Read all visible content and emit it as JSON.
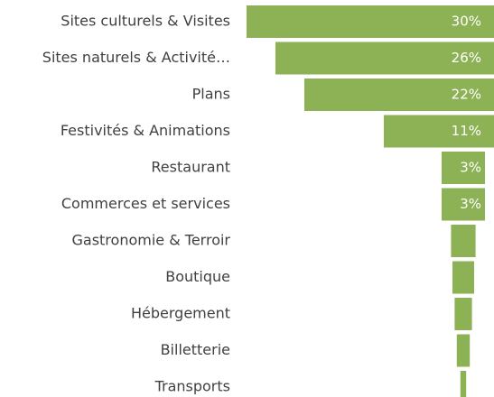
{
  "chart_data": {
    "type": "funnel",
    "categories": [
      "Sites culturels & Visites",
      "Sites naturels & Activité…",
      "Plans",
      "Festivités & Animations",
      "Restaurant",
      "Commerces et services",
      "Gastronomie & Terroir",
      "Boutique",
      "Hébergement",
      "Billetterie",
      "Transports"
    ],
    "values": [
      30,
      26,
      22,
      11,
      3,
      3,
      1.7,
      1.5,
      1.2,
      0.9,
      0.4
    ],
    "value_labels": [
      "30%",
      "26%",
      "22%",
      "11%",
      "3%",
      "3%",
      null,
      null,
      null,
      null,
      null
    ],
    "color": "#8db255"
  }
}
